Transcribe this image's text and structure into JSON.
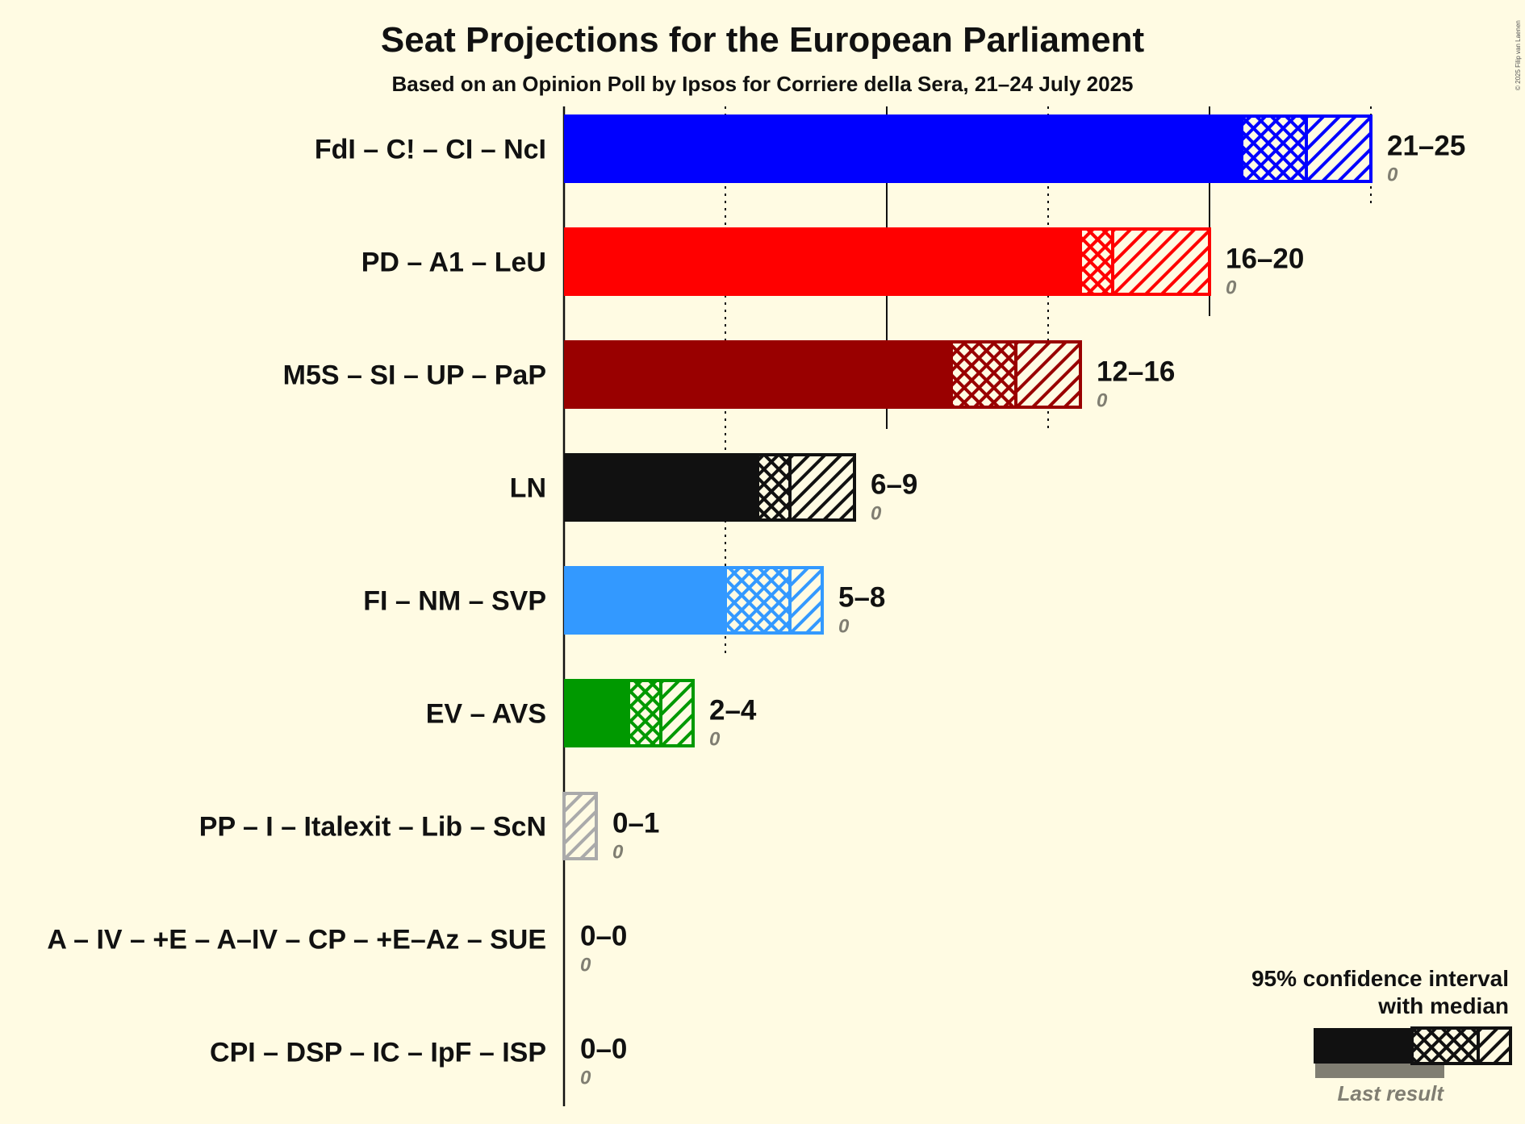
{
  "chart_data": {
    "type": "bar",
    "title": "Seat Projections for the European Parliament",
    "subtitle": "Based on an Opinion Poll by Ipsos for Corriere della Sera, 21–24 July 2025",
    "copyright": "© 2025 Filip van Laenen",
    "xlim": [
      0,
      25
    ],
    "gridlines": [
      5,
      10,
      15,
      20,
      25
    ],
    "parties": [
      {
        "name": "FdI – C! – CI – NcI",
        "low": 21,
        "median": 23,
        "high": 25,
        "range_label": "21–25",
        "last_result": "0",
        "color": "#0000FF"
      },
      {
        "name": "PD – A1 – LeU",
        "low": 16,
        "median": 17,
        "high": 20,
        "range_label": "16–20",
        "last_result": "0",
        "color": "#FF0000"
      },
      {
        "name": "M5S – SI – UP – PaP",
        "low": 12,
        "median": 14,
        "high": 16,
        "range_label": "12–16",
        "last_result": "0",
        "color": "#990000"
      },
      {
        "name": "LN",
        "low": 6,
        "median": 7,
        "high": 9,
        "range_label": "6–9",
        "last_result": "0",
        "color": "#111111"
      },
      {
        "name": "FI – NM – SVP",
        "low": 5,
        "median": 7,
        "high": 8,
        "range_label": "5–8",
        "last_result": "0",
        "color": "#3399FF"
      },
      {
        "name": "EV – AVS",
        "low": 2,
        "median": 3,
        "high": 4,
        "range_label": "2–4",
        "last_result": "0",
        "color": "#009900"
      },
      {
        "name": "PP – I – Italexit – Lib – ScN",
        "low": 0,
        "median": 0,
        "high": 1,
        "range_label": "0–1",
        "last_result": "0",
        "color": "#AAAAAA"
      },
      {
        "name": "A – IV – +E – A–IV – CP – +E–Az – SUE",
        "low": 0,
        "median": 0,
        "high": 0,
        "range_label": "0–0",
        "last_result": "0",
        "color": "#111111"
      },
      {
        "name": "CPI – DSP – IC – IpF – ISP",
        "low": 0,
        "median": 0,
        "high": 0,
        "range_label": "0–0",
        "last_result": "0",
        "color": "#111111"
      }
    ],
    "legend": {
      "line1": "95% confidence interval",
      "line2": "with median",
      "last_result_label": "Last result"
    }
  }
}
